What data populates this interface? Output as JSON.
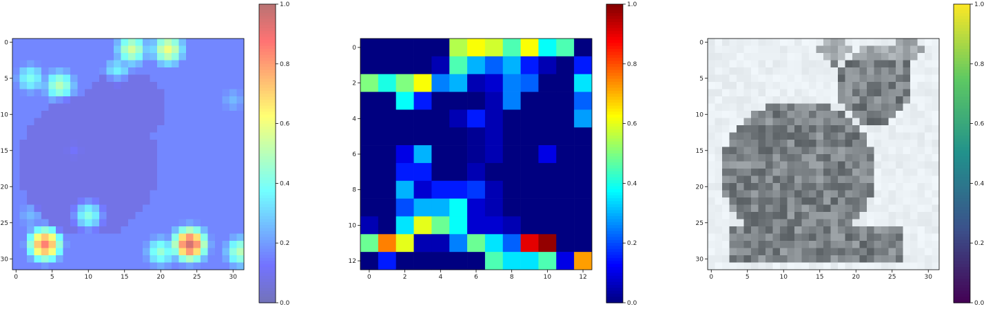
{
  "chart_data": [
    {
      "type": "heatmap",
      "title": "",
      "xlabel": "",
      "ylabel": "",
      "grid_size": [
        32,
        32
      ],
      "colormap": "jet (semi-transparent overlay)",
      "x_ticks": [
        0,
        5,
        10,
        15,
        20,
        25,
        30
      ],
      "y_ticks": [
        0,
        5,
        10,
        15,
        20,
        25,
        30
      ],
      "xlim": [
        -0.5,
        31.5
      ],
      "ylim": [
        31.5,
        -0.5
      ],
      "colorbar": {
        "range": [
          0,
          1
        ],
        "ticks": [
          "0.0",
          "0.2",
          "0.4",
          "0.6",
          "0.8",
          "1.0"
        ]
      },
      "blobs": [
        {
          "x": 21,
          "y": 1,
          "value": 0.6
        },
        {
          "x": 16,
          "y": 1,
          "value": 0.55
        },
        {
          "x": 14,
          "y": 4,
          "value": 0.35
        },
        {
          "x": 6,
          "y": 6,
          "value": 0.5
        },
        {
          "x": 2,
          "y": 5,
          "value": 0.4
        },
        {
          "x": 30,
          "y": 8,
          "value": 0.25
        },
        {
          "x": 10,
          "y": 24,
          "value": 0.5
        },
        {
          "x": 4,
          "y": 28,
          "value": 0.85
        },
        {
          "x": 24,
          "y": 28,
          "value": 0.95
        },
        {
          "x": 20,
          "y": 29,
          "value": 0.45
        },
        {
          "x": 31,
          "y": 29,
          "value": 0.5
        },
        {
          "x": 8,
          "y": 15,
          "value": 0.2
        },
        {
          "x": 2,
          "y": 24,
          "value": 0.25
        }
      ]
    },
    {
      "type": "heatmap",
      "title": "",
      "xlabel": "",
      "ylabel": "",
      "grid_size": [
        13,
        13
      ],
      "colormap": "jet",
      "x_ticks": [
        0,
        2,
        4,
        6,
        8,
        10,
        12
      ],
      "y_ticks": [
        0,
        2,
        4,
        6,
        8,
        10,
        12
      ],
      "xlim": [
        -0.5,
        12.5
      ],
      "ylim": [
        12.5,
        -0.5
      ],
      "colorbar": {
        "range": [
          0,
          1
        ],
        "ticks": [
          "0.0",
          "0.2",
          "0.4",
          "0.6",
          "0.8",
          "1.0"
        ]
      },
      "values": [
        [
          0,
          0,
          0,
          0,
          0,
          0.55,
          0.62,
          0.58,
          0.45,
          0.62,
          0.38,
          0.45,
          0
        ],
        [
          0,
          0,
          0,
          0,
          0.05,
          0.45,
          0.3,
          0.22,
          0.3,
          0.15,
          0.05,
          0,
          0.15
        ],
        [
          0.5,
          0.4,
          0.5,
          0.62,
          0.25,
          0.3,
          0.05,
          0.08,
          0.25,
          0.22,
          0,
          0,
          0.35
        ],
        [
          0,
          0,
          0.38,
          0.15,
          0,
          0,
          0,
          0.05,
          0.25,
          0,
          0,
          0,
          0.22
        ],
        [
          0,
          0,
          0,
          0,
          0,
          0.05,
          0.15,
          0.05,
          0,
          0,
          0,
          0,
          0.28
        ],
        [
          0,
          0,
          0,
          0,
          0,
          0,
          0.02,
          0.05,
          0,
          0,
          0,
          0,
          0
        ],
        [
          0,
          0,
          0.1,
          0.3,
          0,
          0,
          0.02,
          0.05,
          0,
          0,
          0.1,
          0,
          0
        ],
        [
          0,
          0,
          0.15,
          0.15,
          0,
          0,
          0.05,
          0,
          0,
          0,
          0,
          0,
          0
        ],
        [
          0,
          0,
          0.3,
          0.08,
          0.15,
          0.15,
          0.18,
          0.05,
          0,
          0,
          0,
          0,
          0
        ],
        [
          0,
          0,
          0.2,
          0.3,
          0.3,
          0.38,
          0.08,
          0.05,
          0,
          0,
          0,
          0,
          0
        ],
        [
          0.05,
          0,
          0.35,
          0.6,
          0.48,
          0.38,
          0.08,
          0.08,
          0.05,
          0,
          0,
          0,
          0
        ],
        [
          0.48,
          0.75,
          0.6,
          0.05,
          0.05,
          0.25,
          0.48,
          0.35,
          0.22,
          0.9,
          0.98,
          0,
          0
        ],
        [
          0,
          0.15,
          0,
          0,
          0,
          0,
          0,
          0.45,
          0.35,
          0.35,
          0.45,
          0.1,
          0.72
        ]
      ]
    },
    {
      "type": "heatmap",
      "title": "",
      "xlabel": "",
      "ylabel": "",
      "grid_size": [
        32,
        32
      ],
      "colormap": "viridis (image shown in grayscale)",
      "x_ticks": [
        0,
        5,
        10,
        15,
        20,
        25,
        30
      ],
      "y_ticks": [
        0,
        5,
        10,
        15,
        20,
        25,
        30
      ],
      "xlim": [
        -0.5,
        31.5
      ],
      "ylim": [
        31.5,
        -0.5
      ],
      "colorbar": {
        "range": [
          0,
          1
        ],
        "ticks": [
          "0.0",
          "0.2",
          "0.4",
          "0.6",
          "0.8",
          "1.0"
        ]
      },
      "cat_shape": {
        "head_center": [
          22.5,
          6
        ],
        "head_radius": [
          5,
          5.5
        ],
        "body_center": [
          12,
          18
        ],
        "body_radius": [
          10.5,
          10
        ],
        "base_rows": [
          26,
          30
        ],
        "base_cols": [
          3,
          26
        ],
        "ears": [
          [
            17,
            1
          ],
          [
            27,
            1
          ]
        ]
      }
    }
  ]
}
